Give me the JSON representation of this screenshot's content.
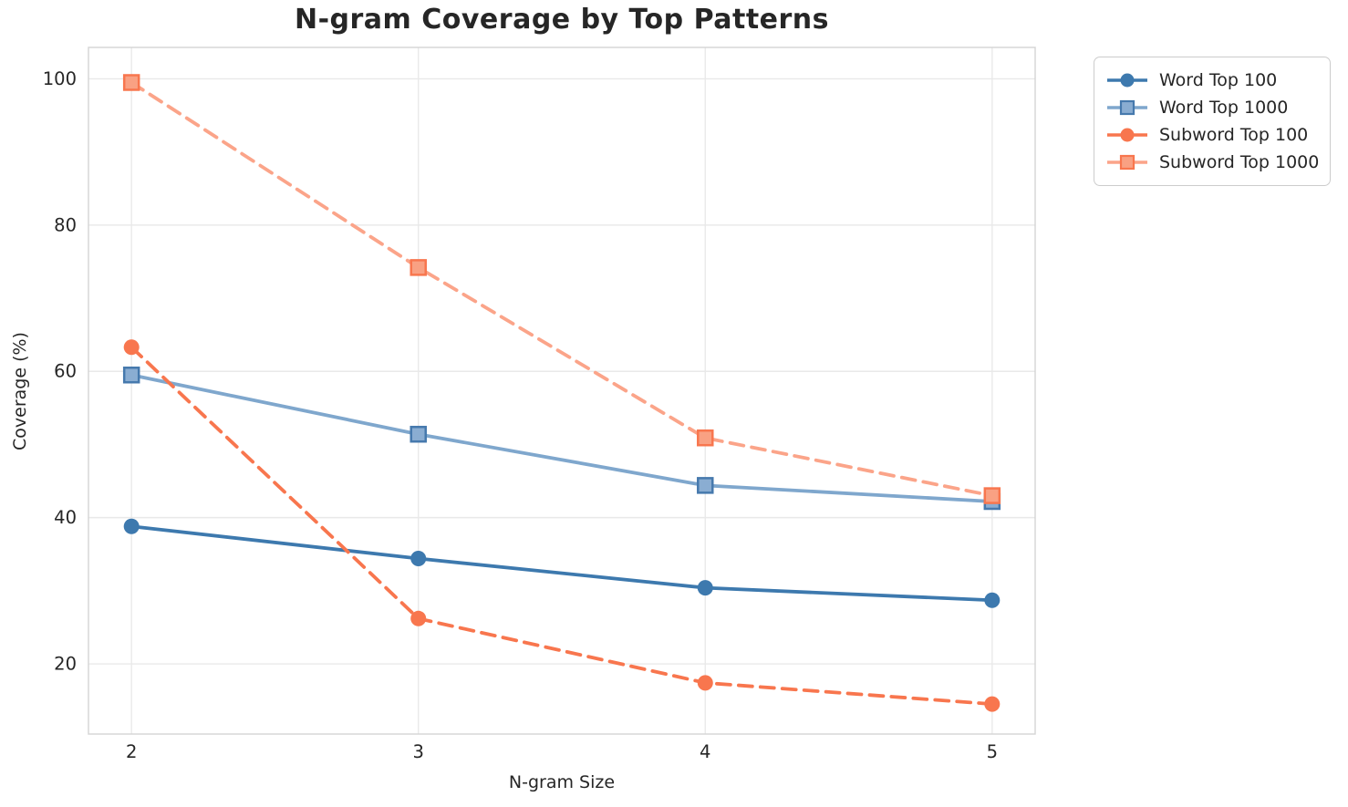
{
  "figure": {
    "background": "#ffffff",
    "grid_color": "#e9e9e9",
    "spine_color": "#d4d4d4",
    "text_color": "#262626"
  },
  "chart_data": {
    "type": "line",
    "title": "N-gram Coverage by Top Patterns",
    "xlabel": "N-gram Size",
    "ylabel": "Coverage (%)",
    "x": [
      2,
      3,
      4,
      5
    ],
    "xticks": [
      2,
      3,
      4,
      5
    ],
    "yticks": [
      20,
      40,
      60,
      80,
      100
    ],
    "xlim": [
      1.85,
      5.15
    ],
    "ylim": [
      10.4,
      104.3
    ],
    "grid": true,
    "legend_position": "outside-upper-right",
    "series": [
      {
        "name": "Word Top 100",
        "values": [
          38.8,
          34.4,
          30.4,
          28.7
        ],
        "color": "#3d79ae",
        "marker": "circle",
        "marker_face": "#3d79ae",
        "marker_edge": "#3d79ae",
        "line_style": "solid"
      },
      {
        "name": "Word Top 1000",
        "values": [
          59.5,
          51.4,
          44.4,
          42.2
        ],
        "color": "#7fa7cd",
        "marker": "square",
        "marker_face": "#8aadd2",
        "marker_edge": "#4679ad",
        "line_style": "solid"
      },
      {
        "name": "Subword Top 100",
        "values": [
          63.3,
          26.2,
          17.4,
          14.5
        ],
        "color": "#f8764e",
        "marker": "circle",
        "marker_face": "#f8764e",
        "marker_edge": "#f8764e",
        "line_style": "dashed"
      },
      {
        "name": "Subword Top 1000",
        "values": [
          99.5,
          74.2,
          50.9,
          43.0
        ],
        "color": "#fba489",
        "marker": "square",
        "marker_face": "#f9a183",
        "marker_edge": "#f8764e",
        "line_style": "dashed"
      }
    ]
  }
}
